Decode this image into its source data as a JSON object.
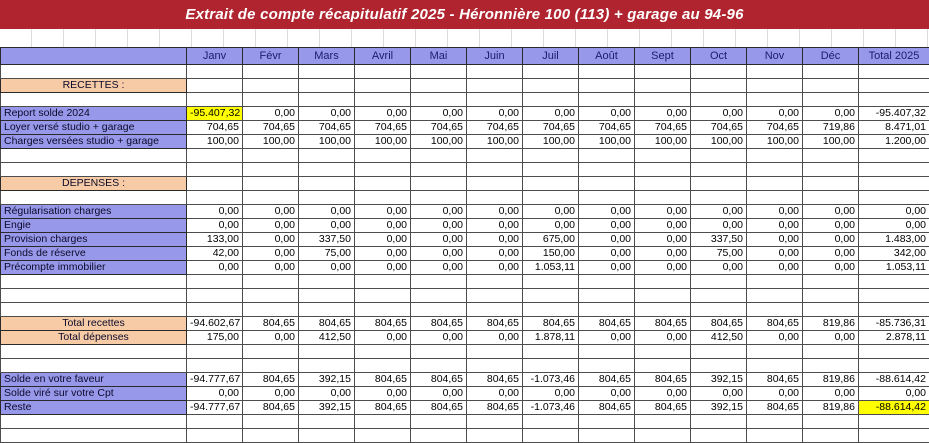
{
  "title": "Extrait de compte récapitulatif 2025 - Héronnière 100 (113) + garage au 94-96",
  "colors": {
    "title_bar": "#b02430",
    "column_header": "#9898ea",
    "row_label": "#9898ea",
    "section_header": "#f7cba6",
    "highlight": "#ffff00"
  },
  "columns": [
    "Janv",
    "Févr",
    "Mars",
    "Avril",
    "Mai",
    "Juin",
    "Juil",
    "Août",
    "Sept",
    "Oct",
    "Nov",
    "Déc",
    "Total 2025"
  ],
  "rows": [
    {
      "type": "empty"
    },
    {
      "type": "section",
      "label": "RECETTES :"
    },
    {
      "type": "empty"
    },
    {
      "type": "data",
      "label": "Report solde 2024",
      "values": [
        "-95.407,32",
        "0,00",
        "0,00",
        "0,00",
        "0,00",
        "0,00",
        "0,00",
        "0,00",
        "0,00",
        "0,00",
        "0,00",
        "0,00",
        "-95.407,32"
      ],
      "highlight": [
        0
      ]
    },
    {
      "type": "data",
      "label": "Loyer versé studio + garage",
      "values": [
        "704,65",
        "704,65",
        "704,65",
        "704,65",
        "704,65",
        "704,65",
        "704,65",
        "704,65",
        "704,65",
        "704,65",
        "704,65",
        "719,86",
        "8.471,01"
      ]
    },
    {
      "type": "data",
      "label": "Charges versées studio + garage",
      "values": [
        "100,00",
        "100,00",
        "100,00",
        "100,00",
        "100,00",
        "100,00",
        "100,00",
        "100,00",
        "100,00",
        "100,00",
        "100,00",
        "100,00",
        "1.200,00"
      ]
    },
    {
      "type": "empty"
    },
    {
      "type": "empty"
    },
    {
      "type": "section",
      "label": "DEPENSES :"
    },
    {
      "type": "empty"
    },
    {
      "type": "data",
      "label": "Régularisation charges",
      "values": [
        "0,00",
        "0,00",
        "0,00",
        "0,00",
        "0,00",
        "0,00",
        "0,00",
        "0,00",
        "0,00",
        "0,00",
        "0,00",
        "0,00",
        "0,00"
      ]
    },
    {
      "type": "data",
      "label": "Engie",
      "values": [
        "0,00",
        "0,00",
        "0,00",
        "0,00",
        "0,00",
        "0,00",
        "0,00",
        "0,00",
        "0,00",
        "0,00",
        "0,00",
        "0,00",
        "0,00"
      ]
    },
    {
      "type": "data",
      "label": "Provision charges",
      "values": [
        "133,00",
        "0,00",
        "337,50",
        "0,00",
        "0,00",
        "0,00",
        "675,00",
        "0,00",
        "0,00",
        "337,50",
        "0,00",
        "0,00",
        "1.483,00"
      ]
    },
    {
      "type": "data",
      "label": "Fonds de réserve",
      "values": [
        "42,00",
        "0,00",
        "75,00",
        "0,00",
        "0,00",
        "0,00",
        "150,00",
        "0,00",
        "0,00",
        "75,00",
        "0,00",
        "0,00",
        "342,00"
      ]
    },
    {
      "type": "data",
      "label": "Précompte immobilier",
      "values": [
        "0,00",
        "0,00",
        "0,00",
        "0,00",
        "0,00",
        "0,00",
        "1.053,11",
        "0,00",
        "0,00",
        "0,00",
        "0,00",
        "0,00",
        "1.053,11"
      ]
    },
    {
      "type": "empty"
    },
    {
      "type": "empty"
    },
    {
      "type": "empty"
    },
    {
      "type": "total",
      "label": "Total recettes",
      "values": [
        "-94.602,67",
        "804,65",
        "804,65",
        "804,65",
        "804,65",
        "804,65",
        "804,65",
        "804,65",
        "804,65",
        "804,65",
        "804,65",
        "819,86",
        "-85.736,31"
      ]
    },
    {
      "type": "total",
      "label": "Total dépenses",
      "values": [
        "175,00",
        "0,00",
        "412,50",
        "0,00",
        "0,00",
        "0,00",
        "1.878,11",
        "0,00",
        "0,00",
        "412,50",
        "0,00",
        "0,00",
        "2.878,11"
      ]
    },
    {
      "type": "empty"
    },
    {
      "type": "empty"
    },
    {
      "type": "data",
      "label": "Solde en votre faveur",
      "values": [
        "-94.777,67",
        "804,65",
        "392,15",
        "804,65",
        "804,65",
        "804,65",
        "-1.073,46",
        "804,65",
        "804,65",
        "392,15",
        "804,65",
        "819,86",
        "-88.614,42"
      ]
    },
    {
      "type": "data",
      "label": "Solde viré sur votre Cpt",
      "values": [
        "0,00",
        "0,00",
        "0,00",
        "0,00",
        "0,00",
        "0,00",
        "0,00",
        "0,00",
        "0,00",
        "0,00",
        "0,00",
        "0,00",
        "0,00"
      ]
    },
    {
      "type": "data",
      "label": "Reste",
      "values": [
        "-94.777,67",
        "804,65",
        "392,15",
        "804,65",
        "804,65",
        "804,65",
        "-1.073,46",
        "804,65",
        "804,65",
        "392,15",
        "804,65",
        "819,86",
        "-88.614,42"
      ],
      "highlight": [
        12
      ]
    },
    {
      "type": "empty"
    },
    {
      "type": "empty"
    }
  ]
}
